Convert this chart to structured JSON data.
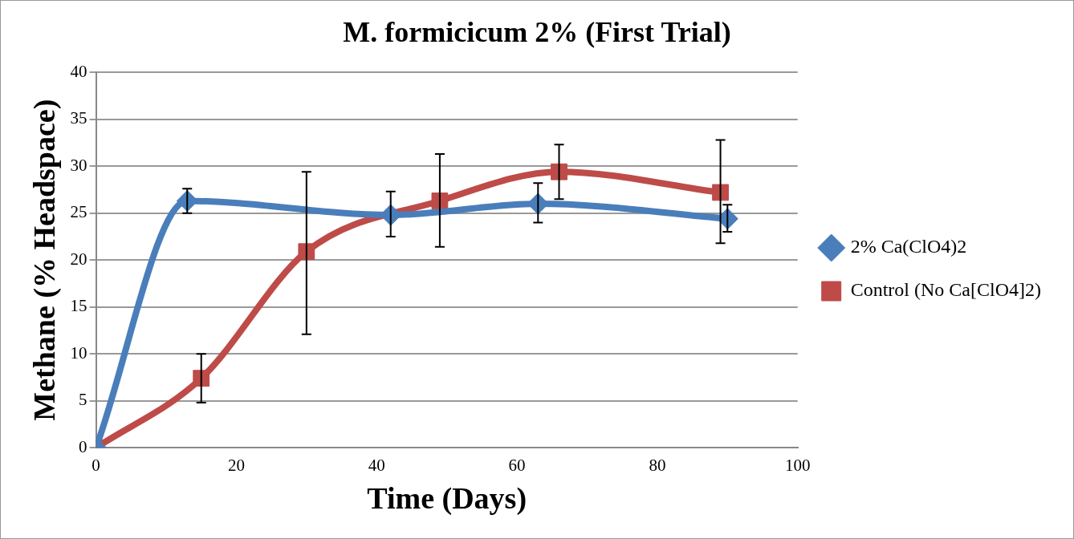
{
  "chart_data": {
    "type": "line",
    "title": "M. formicicum 2% (First Trial)",
    "xlabel": "Time (Days)",
    "ylabel": "Methane (% Headspace)",
    "xlim": [
      0,
      100
    ],
    "xticks": [
      0,
      20,
      40,
      60,
      80,
      100
    ],
    "ylim": [
      0,
      40
    ],
    "yticks": [
      0,
      5,
      10,
      15,
      20,
      25,
      30,
      35,
      40
    ],
    "grid": "y",
    "legend": "right",
    "line_style": "solid",
    "series": [
      {
        "name": "2% Ca(ClO4)2",
        "color": "#4a7ebb",
        "marker": "diamond",
        "x": [
          0,
          13,
          42,
          63,
          90
        ],
        "values": [
          0,
          26.3,
          24.8,
          26.0,
          24.4
        ],
        "errors": [
          null,
          [
            25.0,
            27.6
          ],
          [
            22.5,
            27.3
          ],
          [
            24.0,
            28.2
          ],
          [
            23.0,
            25.9
          ]
        ]
      },
      {
        "name": "Control (No Ca[ClO4]2)",
        "color": "#be4b48",
        "marker": "square",
        "x": [
          0,
          15,
          30,
          49,
          66,
          89
        ],
        "values": [
          0,
          7.4,
          20.9,
          26.3,
          29.4,
          27.2
        ],
        "errors": [
          null,
          [
            4.8,
            10.0
          ],
          [
            12.1,
            29.4
          ],
          [
            21.4,
            31.3
          ],
          [
            26.5,
            32.3
          ],
          [
            21.8,
            32.8
          ]
        ]
      }
    ]
  }
}
